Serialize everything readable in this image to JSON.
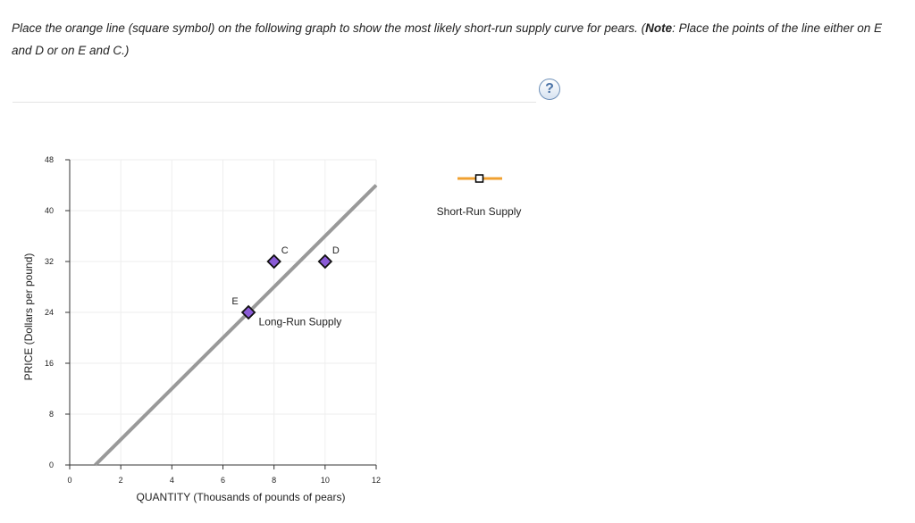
{
  "instructions": {
    "part1": "Place the orange line (square symbol) on the following graph to show the most likely short-run supply curve for pears. (",
    "note_label": "Note",
    "part2": ": Place the points of the line either on E and D or on E and C.)"
  },
  "help": {
    "label": "?"
  },
  "chart_data": {
    "type": "line",
    "xlabel": "QUANTITY (Thousands of pounds of pears)",
    "ylabel": "PRICE (Dollars per pound)",
    "xlim": [
      0,
      12
    ],
    "ylim": [
      0,
      48
    ],
    "xticks": [
      0,
      2,
      4,
      6,
      8,
      10,
      12
    ],
    "yticks": [
      0,
      8,
      16,
      24,
      32,
      40,
      48
    ],
    "grid": true,
    "series": [
      {
        "name": "Long-Run Supply",
        "color": "#999999",
        "points": [
          [
            1,
            0
          ],
          [
            12,
            44
          ]
        ],
        "label_at": [
          7.4,
          22.5
        ]
      }
    ],
    "points": [
      {
        "name": "E",
        "x": 7,
        "y": 24,
        "label_side": "upper-left"
      },
      {
        "name": "C",
        "x": 8,
        "y": 32,
        "label_side": "upper-right"
      },
      {
        "name": "D",
        "x": 10,
        "y": 32,
        "label_side": "upper-right"
      }
    ],
    "point_color": "#8a5bd6",
    "legend": [
      {
        "name": "Short-Run Supply",
        "color": "#f0a030",
        "symbol": "square"
      }
    ]
  }
}
